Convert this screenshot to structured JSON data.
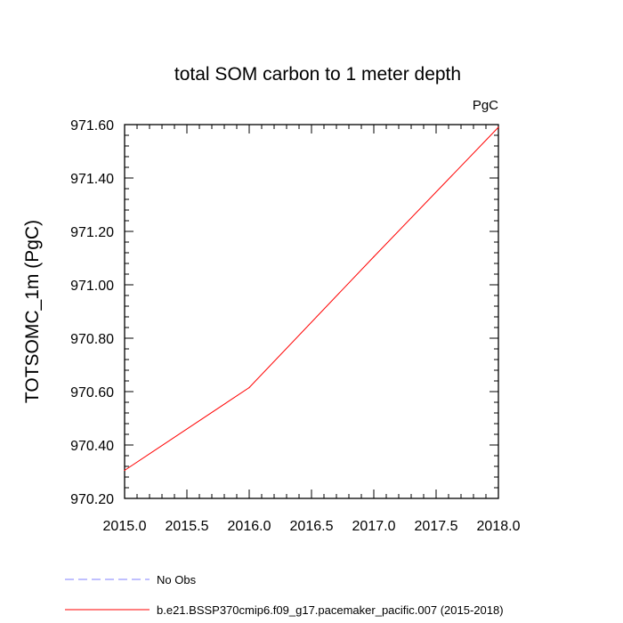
{
  "chart_data": {
    "type": "line",
    "title": "total SOM carbon to 1 meter depth",
    "units_label": "PgC",
    "xlabel": "",
    "ylabel": "TOTSOMC_1m  (PgC)",
    "xlim": [
      2015.0,
      2018.0
    ],
    "ylim": [
      970.2,
      971.6
    ],
    "x_ticks": [
      2015.0,
      2015.5,
      2016.0,
      2016.5,
      2017.0,
      2017.5,
      2018.0
    ],
    "x_tick_labels": [
      "2015.0",
      "2015.5",
      "2016.0",
      "2016.5",
      "2017.0",
      "2017.5",
      "2018.0"
    ],
    "y_ticks": [
      970.2,
      970.4,
      970.6,
      970.8,
      971.0,
      971.2,
      971.4,
      971.6
    ],
    "y_tick_labels": [
      "970.20",
      "970.40",
      "970.60",
      "970.80",
      "971.00",
      "971.20",
      "971.40",
      "971.60"
    ],
    "series": [
      {
        "name": "b.e21.BSSP370cmip6.f09_g17.pacemaker_pacific.007 (2015-2018)",
        "color": "#ff0000",
        "dash": "solid",
        "x": [
          2015.0,
          2016.0,
          2017.0,
          2018.0
        ],
        "values": [
          970.305,
          970.615,
          971.105,
          971.59
        ]
      }
    ],
    "legend": [
      {
        "label": "No Obs",
        "color": "#8080ff",
        "dash": "dashed"
      },
      {
        "label": "b.e21.BSSP370cmip6.f09_g17.pacemaker_pacific.007 (2015-2018)",
        "color": "#ff0000",
        "dash": "solid"
      }
    ]
  }
}
